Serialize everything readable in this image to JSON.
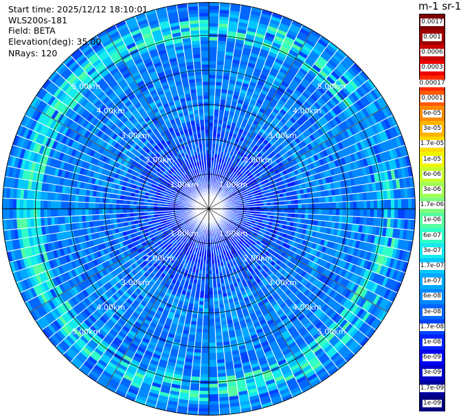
{
  "info": {
    "start_time": "Start time: 2025/12/12 18:10:01",
    "instrument": "WLS200s-181",
    "field": "Field: BETA",
    "elevation": "Elevation(deg): 35.00",
    "nrays": "NRays: 120"
  },
  "colorbar": {
    "units_label": "m-1 sr-1",
    "ticks": [
      "0.0017",
      "0.001",
      "0.0006",
      "0.0003",
      "0.00017",
      "0.0001",
      "6e-05",
      "3e-05",
      "1.7e-05",
      "1e-05",
      "6e-06",
      "3e-06",
      "1.7e-06",
      "1e-06",
      "6e-07",
      "3e-07",
      "1.7e-07",
      "1e-07",
      "6e-08",
      "3e-08",
      "1.7e-08",
      "1e-08",
      "6e-09",
      "3e-09",
      "1.7e-09",
      "1e-09"
    ],
    "colors": [
      "#7f0000",
      "#9e0000",
      "#c80000",
      "#ee0000",
      "#ff2a00",
      "#ff5a00",
      "#ff8a00",
      "#ffb400",
      "#ffdc00",
      "#f0f500",
      "#c8ff2c",
      "#a2ff56",
      "#7cff7c",
      "#56ffa2",
      "#30ffc6",
      "#16ebec",
      "#00c8ff",
      "#00a8ff",
      "#0088ff",
      "#0066ff",
      "#0044ff",
      "#0022ff",
      "#0000f0",
      "#0000c8",
      "#0000a0",
      "#00007f"
    ]
  },
  "chart_data": {
    "type": "heatmap",
    "projection": "polar PPI",
    "nrays": 120,
    "range_rings_km": [
      1,
      2,
      3,
      4,
      5
    ],
    "ring_labels": [
      "1.00km",
      "2.00km",
      "3.00km",
      "4.00km",
      "5.00km"
    ],
    "max_range_km": 5.95,
    "field": "BETA",
    "elevation_deg": 35.0,
    "value_pattern": "mostly 3e-08 to 1e-07 (blue); ring of 1e-07 to 1e-06 (cyan/green) near 5.0-5.5 km strongest toward west and north-west; inner 0-2 km mostly 1e-08 to 3e-08 (dark blue)"
  }
}
